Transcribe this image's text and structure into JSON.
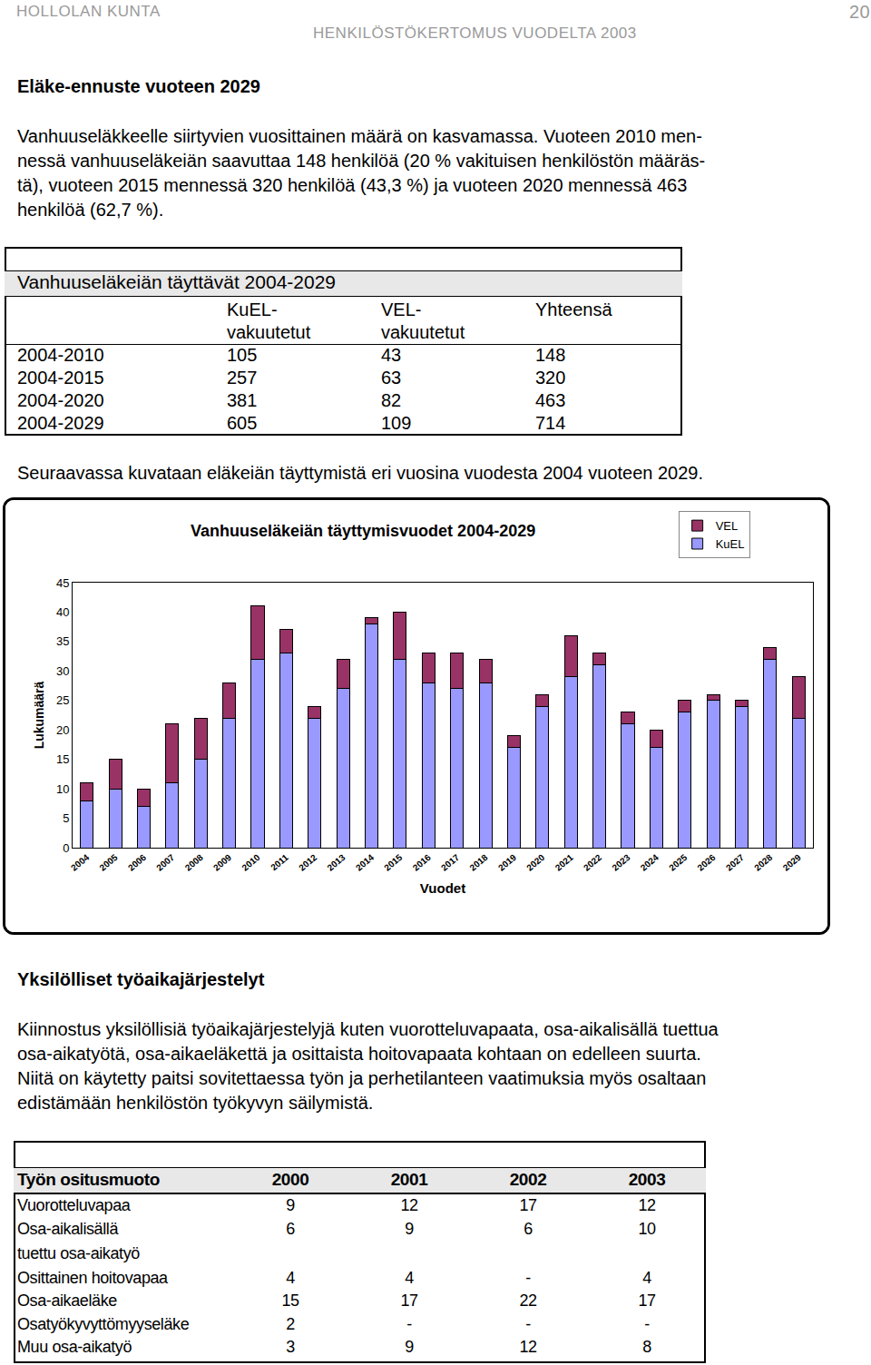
{
  "header": {
    "org": "HOLLOLAN KUNTA",
    "report": "HENKILÖSTÖKERTOMUS VUODELTA 2003",
    "page": "20"
  },
  "section1": {
    "heading": "Eläke-ennuste vuoteen 2029",
    "paragraph_lines": [
      "Vanhuuseläkkeelle siirtyvien vuosittainen määrä on kasvamassa. Vuoteen 2010 men-",
      "nessä vanhuuseläkeiän saavuttaa 148 henkilöä (20 % vakituisen henkilöstön määräs-",
      "tä), vuoteen 2015 mennessä 320 henkilöä (43,3 %) ja vuoteen 2020 mennessä 463",
      "henkilöä (62,7 %)."
    ]
  },
  "table1": {
    "title": "Vanhuuseläkeiän täyttävät 2004-2029",
    "columns": [
      [],
      [
        "KuEL-",
        "vakuutetut"
      ],
      [
        "VEL-",
        "vakuutetut"
      ],
      [
        "Yhteensä"
      ]
    ],
    "rows": [
      [
        "2004-2010",
        105,
        43,
        148
      ],
      [
        "2004-2015",
        257,
        63,
        320
      ],
      [
        "2004-2020",
        381,
        82,
        463
      ],
      [
        "2004-2029",
        605,
        109,
        714
      ]
    ]
  },
  "chart_intro": "Seuraavassa kuvataan eläkeiän täyttymistä eri vuosina vuodesta 2004 vuoteen 2029.",
  "chart_data": {
    "type": "bar",
    "title": "Vanhuuseläkeiän täyttymisvuodet 2004-2029",
    "x_label": "Vuodet",
    "y_label": "Lukumäärä",
    "categories": [
      "2004",
      "2005",
      "2006",
      "2007",
      "2008",
      "2009",
      "2010",
      "2011",
      "2012",
      "2013",
      "2014",
      "2015",
      "2016",
      "2017",
      "2018",
      "2019",
      "2020",
      "2021",
      "2022",
      "2023",
      "2024",
      "2025",
      "2026",
      "2027",
      "2028",
      "2029"
    ],
    "series": [
      {
        "name": "KuEL",
        "color": "#9999ff",
        "values": [
          8,
          10,
          7,
          11,
          15,
          22,
          32,
          33,
          22,
          27,
          38,
          32,
          28,
          27,
          28,
          17,
          24,
          29,
          31,
          21,
          17,
          23,
          25,
          24,
          32,
          22
        ]
      },
      {
        "name": "VEL",
        "color": "#993366",
        "values": [
          3,
          5,
          3,
          10,
          7,
          6,
          9,
          4,
          2,
          5,
          1,
          8,
          5,
          6,
          4,
          2,
          2,
          7,
          2,
          2,
          3,
          2,
          1,
          1,
          2,
          7
        ]
      }
    ],
    "stacked": true,
    "ylim": [
      0,
      45
    ],
    "yticks": [
      0,
      5,
      10,
      15,
      20,
      25,
      30,
      35,
      40,
      45
    ],
    "grid": false,
    "legend": "upper right"
  },
  "section2": {
    "heading": "Yksilölliset työaikajärjestelyt",
    "paragraph_lines": [
      "Kiinnostus yksilöllisiä työaikajärjestelyjä kuten vuorotteluvapaata, osa-aikalisällä tuettua",
      "osa-aikatyötä, osa-aikaeläkettä ja osittaista hoitovapaata kohtaan on edelleen suurta.",
      "Niitä on käytetty paitsi sovitettaessa työn ja perhetilanteen vaatimuksia myös osaltaan",
      "edistämään henkilöstön työkyvyn säilymistä."
    ]
  },
  "table2": {
    "columns": [
      "Työn ositusmuoto",
      "2000",
      "2001",
      "2002",
      "2003"
    ],
    "rows": [
      {
        "label": [
          "Vuorotteluvapaa"
        ],
        "values": [
          9,
          12,
          17,
          12
        ]
      },
      {
        "label": [
          "Osa-aikalisällä",
          "tuettu osa-aikatyö"
        ],
        "values": [
          6,
          9,
          6,
          10
        ]
      },
      {
        "label": [
          "Osittainen hoitovapaa"
        ],
        "values": [
          4,
          4,
          "-",
          4
        ]
      },
      {
        "label": [
          "Osa-aikaeläke"
        ],
        "values": [
          15,
          17,
          22,
          17
        ]
      },
      {
        "label": [
          "Osatyökyvyttömyyseläke"
        ],
        "values": [
          2,
          "-",
          "-",
          "-"
        ]
      },
      {
        "label": [
          "Muu osa-aikatyö"
        ],
        "values": [
          3,
          9,
          12,
          8
        ]
      }
    ]
  }
}
